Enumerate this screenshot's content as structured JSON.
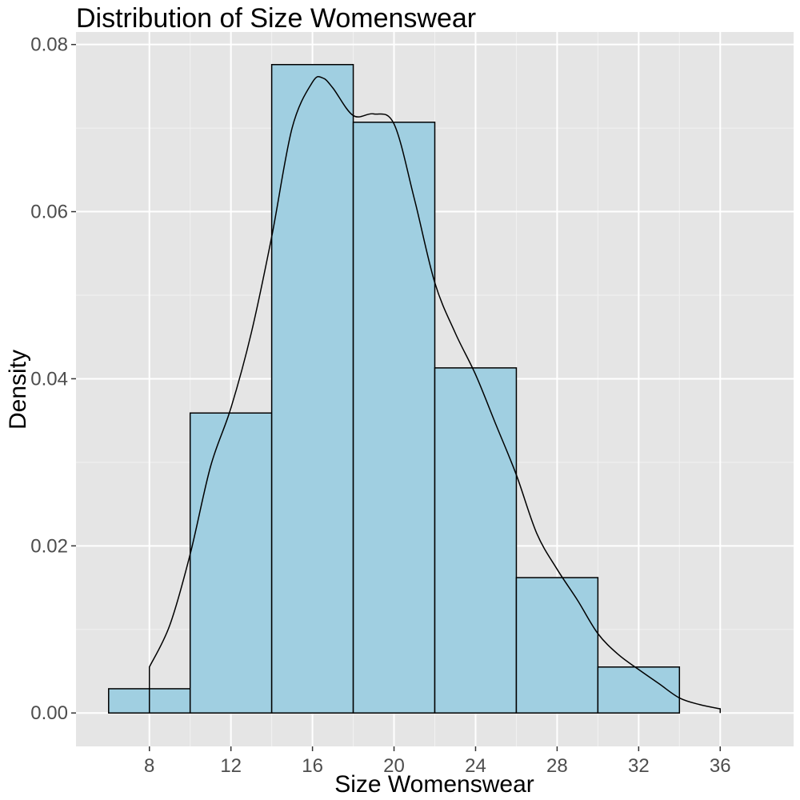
{
  "chart_data": {
    "type": "bar",
    "title": "Distribution of Size Womenswear",
    "xlabel": "Size Womenswear",
    "ylabel": "Density",
    "xlim": [
      4.4,
      39.6
    ],
    "ylim": [
      -0.004,
      0.0815
    ],
    "x_ticks": [
      8,
      12,
      16,
      20,
      24,
      28,
      32,
      36
    ],
    "x_tick_labels": [
      "8",
      "12",
      "16",
      "20",
      "24",
      "28",
      "32",
      "36"
    ],
    "y_ticks": [
      0.0,
      0.02,
      0.04,
      0.06,
      0.08
    ],
    "y_tick_labels": [
      "0.00",
      "0.02",
      "0.04",
      "0.06",
      "0.08"
    ],
    "grid": true,
    "legend": "none",
    "bins": [
      {
        "start": 6,
        "end": 10,
        "density": 0.0029
      },
      {
        "start": 10,
        "end": 14,
        "density": 0.0359
      },
      {
        "start": 14,
        "end": 18,
        "density": 0.0776
      },
      {
        "start": 18,
        "end": 22,
        "density": 0.0707
      },
      {
        "start": 22,
        "end": 26,
        "density": 0.0413
      },
      {
        "start": 26,
        "end": 30,
        "density": 0.0162
      },
      {
        "start": 30,
        "end": 34,
        "density": 0.0055
      },
      {
        "start": 34,
        "end": 38,
        "density": 0.0
      }
    ],
    "density_curve": {
      "x": [
        8,
        9,
        10,
        11,
        12,
        13,
        14,
        15,
        16,
        16.5,
        17,
        18,
        19,
        20,
        21,
        22,
        23,
        24,
        25,
        26,
        27,
        28,
        29,
        30,
        31,
        32,
        33,
        34,
        35,
        36
      ],
      "y": [
        0.0055,
        0.0105,
        0.019,
        0.0295,
        0.0365,
        0.0455,
        0.057,
        0.07,
        0.0755,
        0.076,
        0.0748,
        0.0715,
        0.0717,
        0.0705,
        0.0615,
        0.0515,
        0.0455,
        0.0405,
        0.0345,
        0.0285,
        0.0215,
        0.0172,
        0.0135,
        0.0095,
        0.007,
        0.0052,
        0.0035,
        0.0018,
        0.001,
        0.0005
      ]
    },
    "colors": {
      "panel": "#e5e5e5",
      "grid_major": "#ffffff",
      "grid_minor": "#f2f2f2",
      "bar_fill": "#a0cfe1",
      "bar_stroke": "#000000",
      "curve": "#000000",
      "tick": "#333333"
    }
  }
}
